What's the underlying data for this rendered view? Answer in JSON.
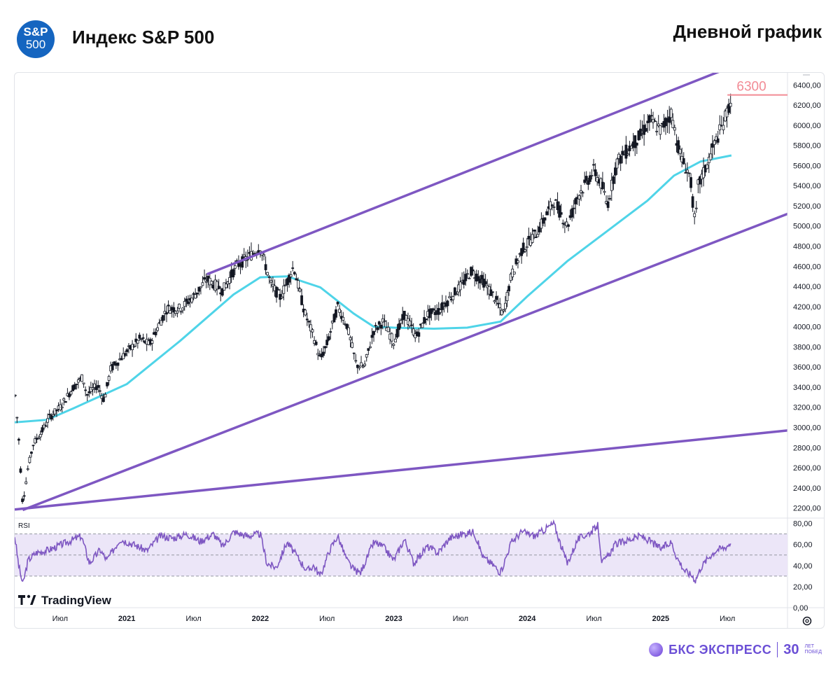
{
  "header": {
    "logo_line1": "S&P",
    "logo_line2": "500",
    "title": "Индекс S&P 500",
    "subtitle": "Дневной график"
  },
  "chart_data": {
    "type": "candlestick",
    "title": "Индекс S&P 500",
    "timeframe": "Дневной график",
    "y_axis": {
      "ylim": [
        2100,
        6520
      ],
      "ticks": [
        "6400,00",
        "6200,00",
        "6000,00",
        "5800,00",
        "5600,00",
        "5400,00",
        "5200,00",
        "5000,00",
        "4800,00",
        "4600,00",
        "4400,00",
        "4200,00",
        "4000,00",
        "3800,00",
        "3600,00",
        "3400,00",
        "3200,00",
        "3000,00",
        "2800,00",
        "2600,00",
        "2400,00",
        "2200,00"
      ],
      "tick_values": [
        6400,
        6200,
        6000,
        5800,
        5600,
        5400,
        5200,
        5000,
        4800,
        4600,
        4400,
        4200,
        4000,
        3800,
        3600,
        3400,
        3200,
        3000,
        2800,
        2600,
        2400,
        2200
      ]
    },
    "x_axis": {
      "xlim": [
        2020.16,
        2025.95
      ],
      "ticks": [
        "Июл",
        "2021",
        "Июл",
        "2022",
        "Июл",
        "2023",
        "Июл",
        "2024",
        "Июл",
        "2025",
        "Июл"
      ],
      "tick_values": [
        2020.5,
        2021.0,
        2021.5,
        2022.0,
        2022.5,
        2023.0,
        2023.5,
        2024.0,
        2024.5,
        2025.0,
        2025.5
      ]
    },
    "price_path": [
      [
        2020.16,
        3380
      ],
      [
        2020.19,
        2900
      ],
      [
        2020.22,
        2237
      ],
      [
        2020.26,
        2600
      ],
      [
        2020.3,
        2840
      ],
      [
        2020.36,
        2950
      ],
      [
        2020.42,
        3100
      ],
      [
        2020.5,
        3200
      ],
      [
        2020.6,
        3400
      ],
      [
        2020.67,
        3500
      ],
      [
        2020.7,
        3320
      ],
      [
        2020.78,
        3420
      ],
      [
        2020.83,
        3270
      ],
      [
        2020.88,
        3580
      ],
      [
        2021.0,
        3750
      ],
      [
        2021.1,
        3880
      ],
      [
        2021.17,
        3820
      ],
      [
        2021.3,
        4180
      ],
      [
        2021.4,
        4180
      ],
      [
        2021.5,
        4300
      ],
      [
        2021.6,
        4470
      ],
      [
        2021.72,
        4360
      ],
      [
        2021.82,
        4600
      ],
      [
        2021.92,
        4700
      ],
      [
        2022.0,
        4790
      ],
      [
        2022.08,
        4420
      ],
      [
        2022.15,
        4290
      ],
      [
        2022.25,
        4600
      ],
      [
        2022.33,
        4150
      ],
      [
        2022.4,
        3900
      ],
      [
        2022.45,
        3670
      ],
      [
        2022.5,
        3830
      ],
      [
        2022.58,
        4200
      ],
      [
        2022.65,
        4010
      ],
      [
        2022.72,
        3620
      ],
      [
        2022.78,
        3600
      ],
      [
        2022.85,
        3960
      ],
      [
        2022.92,
        4050
      ],
      [
        2023.0,
        3850
      ],
      [
        2023.08,
        4120
      ],
      [
        2023.17,
        3900
      ],
      [
        2023.25,
        4120
      ],
      [
        2023.33,
        4150
      ],
      [
        2023.42,
        4280
      ],
      [
        2023.5,
        4400
      ],
      [
        2023.58,
        4550
      ],
      [
        2023.67,
        4450
      ],
      [
        2023.75,
        4300
      ],
      [
        2023.82,
        4120
      ],
      [
        2023.88,
        4500
      ],
      [
        2023.96,
        4760
      ],
      [
        2024.08,
        4950
      ],
      [
        2024.2,
        5250
      ],
      [
        2024.3,
        5000
      ],
      [
        2024.38,
        5300
      ],
      [
        2024.5,
        5550
      ],
      [
        2024.56,
        5400
      ],
      [
        2024.6,
        5200
      ],
      [
        2024.67,
        5630
      ],
      [
        2024.75,
        5750
      ],
      [
        2024.85,
        5900
      ],
      [
        2024.92,
        6050
      ],
      [
        2025.0,
        5950
      ],
      [
        2025.08,
        6120
      ],
      [
        2025.12,
        5850
      ],
      [
        2025.16,
        5650
      ],
      [
        2025.22,
        5500
      ],
      [
        2025.26,
        4985
      ],
      [
        2025.28,
        5400
      ],
      [
        2025.33,
        5550
      ],
      [
        2025.4,
        5800
      ],
      [
        2025.46,
        5990
      ],
      [
        2025.5,
        6140
      ],
      [
        2025.53,
        6279
      ]
    ],
    "moving_average_200": [
      [
        2020.16,
        3050
      ],
      [
        2020.4,
        3075
      ],
      [
        2020.6,
        3190
      ],
      [
        2020.85,
        3340
      ],
      [
        2021.0,
        3430
      ],
      [
        2021.4,
        3860
      ],
      [
        2021.8,
        4320
      ],
      [
        2022.0,
        4490
      ],
      [
        2022.2,
        4500
      ],
      [
        2022.45,
        4390
      ],
      [
        2022.7,
        4130
      ],
      [
        2022.85,
        4000
      ],
      [
        2023.0,
        3990
      ],
      [
        2023.3,
        3980
      ],
      [
        2023.55,
        3990
      ],
      [
        2023.8,
        4050
      ],
      [
        2024.0,
        4300
      ],
      [
        2024.3,
        4650
      ],
      [
        2024.6,
        4950
      ],
      [
        2024.9,
        5250
      ],
      [
        2025.1,
        5500
      ],
      [
        2025.3,
        5640
      ],
      [
        2025.53,
        5700
      ]
    ],
    "channel_lines": [
      {
        "name": "upper-trendline",
        "points": [
          [
            2021.6,
            4520
          ],
          [
            2025.53,
            6580
          ]
        ]
      },
      {
        "name": "lower-trendline",
        "points": [
          [
            2020.22,
            2180
          ],
          [
            2025.95,
            5120
          ]
        ]
      },
      {
        "name": "long-term-support",
        "points": [
          [
            2020.16,
            2185
          ],
          [
            2025.95,
            2970
          ]
        ]
      }
    ],
    "level": {
      "value": 6300,
      "label": "6300"
    },
    "rsi": {
      "name": "RSI",
      "ylim": [
        0,
        85
      ],
      "ticks": [
        "80,00",
        "60,00",
        "40,00",
        "20,00",
        "0,00"
      ],
      "tick_values": [
        80,
        60,
        40,
        20,
        0
      ],
      "band": [
        30,
        70
      ],
      "midline": 50,
      "series": [
        [
          2020.16,
          68
        ],
        [
          2020.19,
          40
        ],
        [
          2020.22,
          22
        ],
        [
          2020.26,
          45
        ],
        [
          2020.32,
          52
        ],
        [
          2020.42,
          55
        ],
        [
          2020.55,
          62
        ],
        [
          2020.66,
          68
        ],
        [
          2020.72,
          42
        ],
        [
          2020.8,
          55
        ],
        [
          2020.85,
          45
        ],
        [
          2020.95,
          65
        ],
        [
          2021.05,
          60
        ],
        [
          2021.15,
          54
        ],
        [
          2021.25,
          68
        ],
        [
          2021.35,
          66
        ],
        [
          2021.45,
          70
        ],
        [
          2021.55,
          63
        ],
        [
          2021.65,
          70
        ],
        [
          2021.72,
          58
        ],
        [
          2021.8,
          72
        ],
        [
          2021.9,
          68
        ],
        [
          2022.0,
          70
        ],
        [
          2022.05,
          42
        ],
        [
          2022.12,
          38
        ],
        [
          2022.2,
          62
        ],
        [
          2022.28,
          48
        ],
        [
          2022.35,
          35
        ],
        [
          2022.4,
          40
        ],
        [
          2022.45,
          30
        ],
        [
          2022.52,
          55
        ],
        [
          2022.58,
          68
        ],
        [
          2022.65,
          45
        ],
        [
          2022.7,
          36
        ],
        [
          2022.75,
          33
        ],
        [
          2022.85,
          62
        ],
        [
          2022.92,
          58
        ],
        [
          2023.0,
          45
        ],
        [
          2023.08,
          65
        ],
        [
          2023.15,
          42
        ],
        [
          2023.25,
          58
        ],
        [
          2023.33,
          52
        ],
        [
          2023.42,
          66
        ],
        [
          2023.52,
          70
        ],
        [
          2023.6,
          72
        ],
        [
          2023.67,
          48
        ],
        [
          2023.75,
          40
        ],
        [
          2023.8,
          33
        ],
        [
          2023.88,
          62
        ],
        [
          2023.96,
          72
        ],
        [
          2024.06,
          68
        ],
        [
          2024.14,
          75
        ],
        [
          2024.2,
          80
        ],
        [
          2024.25,
          60
        ],
        [
          2024.3,
          42
        ],
        [
          2024.38,
          65
        ],
        [
          2024.48,
          72
        ],
        [
          2024.53,
          78
        ],
        [
          2024.56,
          42
        ],
        [
          2024.6,
          48
        ],
        [
          2024.66,
          60
        ],
        [
          2024.75,
          64
        ],
        [
          2024.85,
          68
        ],
        [
          2024.92,
          63
        ],
        [
          2025.0,
          56
        ],
        [
          2025.08,
          62
        ],
        [
          2025.12,
          48
        ],
        [
          2025.18,
          35
        ],
        [
          2025.24,
          30
        ],
        [
          2025.26,
          26
        ],
        [
          2025.3,
          38
        ],
        [
          2025.36,
          48
        ],
        [
          2025.42,
          55
        ],
        [
          2025.48,
          57
        ],
        [
          2025.53,
          62
        ]
      ]
    },
    "colors": {
      "candles": "#131722",
      "ma_line": "#4fd4e8",
      "channel": "#7e57c2",
      "level_line": "#f28b95",
      "level_label": "#f28b95",
      "rsi_line": "#7e57c2",
      "rsi_band": "#ece6f8",
      "grid_text": "#131722"
    },
    "watermark": "TradingView"
  },
  "footer": {
    "brand": "БКС ЭКСПРЕСС",
    "years_number": "30",
    "years_line1": "ЛЕТ",
    "years_line2": "ПОБЕД"
  }
}
